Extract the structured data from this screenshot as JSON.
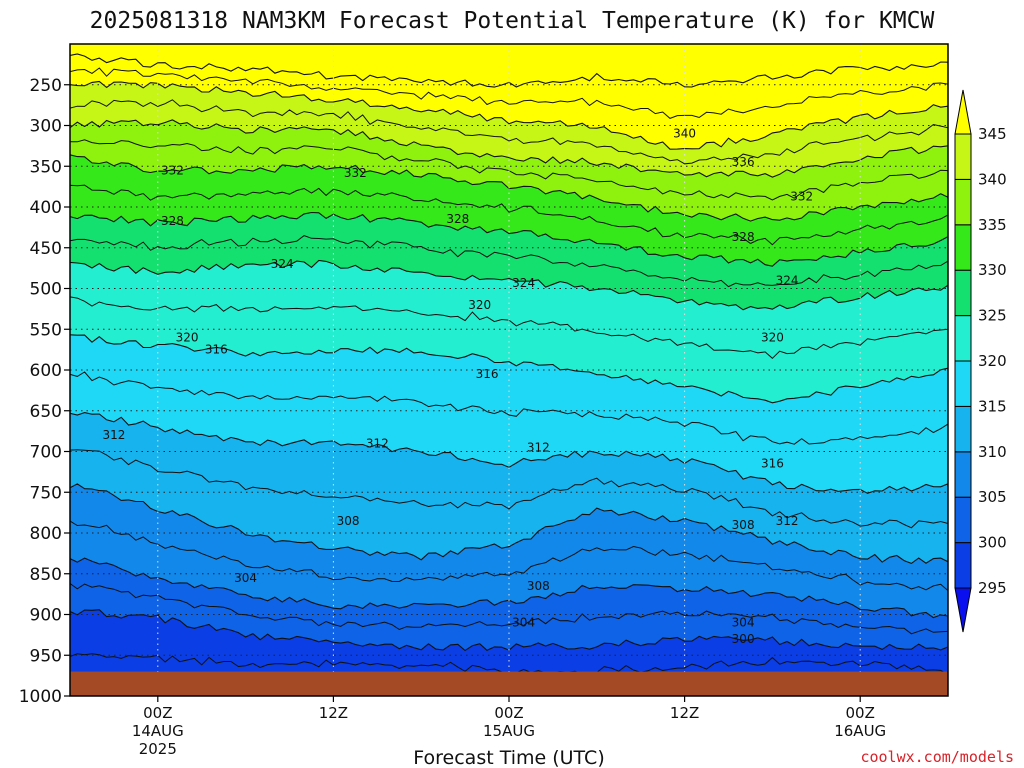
{
  "chart_data": {
    "type": "contour",
    "title": "2025081318 NAM3KM Forecast Potential Temperature (K) for KMCW",
    "xlabel": "Forecast Time (UTC)",
    "ylabel": "",
    "credit": "coolwx.com/models",
    "y_axis": {
      "scale": "pressure (hPa)",
      "ticks": [
        "250",
        "300",
        "350",
        "400",
        "450",
        "500",
        "550",
        "600",
        "650",
        "700",
        "750",
        "800",
        "850",
        "900",
        "950",
        "1000"
      ],
      "ylim": [
        200,
        1000
      ],
      "inverted": true
    },
    "x_axis": {
      "ticks": [
        {
          "hour": 0,
          "lines": [
            "00Z",
            "14AUG",
            "2025"
          ]
        },
        {
          "hour": 12,
          "lines": [
            "12Z"
          ]
        },
        {
          "hour": 24,
          "lines": [
            "00Z",
            "15AUG"
          ]
        },
        {
          "hour": 36,
          "lines": [
            "12Z"
          ]
        },
        {
          "hour": 48,
          "lines": [
            "00Z",
            "16AUG"
          ]
        }
      ],
      "xlim": [
        -6,
        54
      ]
    },
    "colorbar": {
      "levels": [
        "295",
        "300",
        "305",
        "310",
        "315",
        "320",
        "325",
        "330",
        "335",
        "340",
        "345"
      ],
      "colors": [
        "#0a0ff0",
        "#0b3ee4",
        "#0f63e6",
        "#1288ea",
        "#16b3ef",
        "#1fd8f5",
        "#23efd0",
        "#14e070",
        "#35e81a",
        "#8ef20e",
        "#c6f615",
        "#ffff00"
      ]
    },
    "surface_pressure": 970,
    "ground_color": "#a44a24",
    "grid": true,
    "series": [
      {
        "theta": 300,
        "pressure": [
          1000,
          1000,
          1000,
          985,
          985,
          1000,
          1000,
          1000,
          985,
          980,
          1000
        ]
      },
      {
        "theta": 304,
        "pressure": [
          895,
          905,
          925,
          935,
          940,
          940,
          938,
          930,
          932,
          940,
          940
        ]
      },
      {
        "theta": 308,
        "pressure": [
          830,
          855,
          875,
          890,
          890,
          885,
          865,
          868,
          875,
          890,
          905
        ]
      },
      {
        "theta": 312,
        "pressure": [
          740,
          770,
          800,
          820,
          830,
          815,
          770,
          785,
          810,
          830,
          835
        ]
      },
      {
        "theta": 316,
        "pressure": [
          650,
          670,
          690,
          690,
          700,
          715,
          700,
          710,
          740,
          750,
          740
        ]
      },
      {
        "theta": 320,
        "pressure": [
          560,
          570,
          580,
          575,
          575,
          590,
          605,
          620,
          640,
          620,
          600
        ]
      },
      {
        "theta": 324,
        "pressure": [
          470,
          480,
          470,
          470,
          480,
          490,
          500,
          515,
          525,
          510,
          500
        ]
      },
      {
        "theta": 328,
        "pressure": [
          410,
          420,
          415,
          410,
          420,
          430,
          445,
          460,
          470,
          455,
          440
        ]
      },
      {
        "theta": 332,
        "pressure": [
          340,
          355,
          355,
          350,
          360,
          375,
          390,
          410,
          415,
          400,
          385
        ]
      },
      {
        "theta": 336,
        "pressure": [
          300,
          295,
          305,
          305,
          325,
          340,
          345,
          360,
          360,
          340,
          325
        ]
      },
      {
        "theta": 340,
        "pressure": [
          250,
          250,
          260,
          268,
          280,
          295,
          300,
          330,
          310,
          290,
          275
        ]
      },
      {
        "theta": 344,
        "pressure": [
          215,
          225,
          230,
          240,
          245,
          250,
          240,
          250,
          240,
          230,
          225
        ]
      }
    ],
    "series_hours": [
      -6,
      0,
      6,
      12,
      18,
      24,
      30,
      36,
      42,
      48,
      54
    ],
    "contour_labels": [
      {
        "text": "332",
        "hour": 1,
        "pressure": 355
      },
      {
        "text": "332",
        "hour": 13.5,
        "pressure": 358
      },
      {
        "text": "328",
        "hour": 1,
        "pressure": 417
      },
      {
        "text": "328",
        "hour": 20.5,
        "pressure": 415
      },
      {
        "text": "328",
        "hour": 40,
        "pressure": 437
      },
      {
        "text": "332",
        "hour": 44,
        "pressure": 387
      },
      {
        "text": "336",
        "hour": 40,
        "pressure": 345
      },
      {
        "text": "340",
        "hour": 36,
        "pressure": 310
      },
      {
        "text": "324",
        "hour": 8.5,
        "pressure": 470
      },
      {
        "text": "324",
        "hour": 25,
        "pressure": 493
      },
      {
        "text": "324",
        "hour": 43,
        "pressure": 490
      },
      {
        "text": "320",
        "hour": 2,
        "pressure": 560
      },
      {
        "text": "320",
        "hour": 22,
        "pressure": 520
      },
      {
        "text": "320",
        "hour": 42,
        "pressure": 560
      },
      {
        "text": "316",
        "hour": 4,
        "pressure": 575
      },
      {
        "text": "316",
        "hour": 22.5,
        "pressure": 605
      },
      {
        "text": "316",
        "hour": 42,
        "pressure": 715
      },
      {
        "text": "312",
        "hour": -3,
        "pressure": 680
      },
      {
        "text": "312",
        "hour": 15,
        "pressure": 690
      },
      {
        "text": "312",
        "hour": 26,
        "pressure": 695
      },
      {
        "text": "312",
        "hour": 43,
        "pressure": 785
      },
      {
        "text": "308",
        "hour": 13,
        "pressure": 785
      },
      {
        "text": "308",
        "hour": 26,
        "pressure": 865
      },
      {
        "text": "308",
        "hour": 40,
        "pressure": 790
      },
      {
        "text": "304",
        "hour": 6,
        "pressure": 855
      },
      {
        "text": "304",
        "hour": 25,
        "pressure": 910
      },
      {
        "text": "304",
        "hour": 40,
        "pressure": 910
      },
      {
        "text": "300",
        "hour": 40,
        "pressure": 930
      }
    ]
  }
}
